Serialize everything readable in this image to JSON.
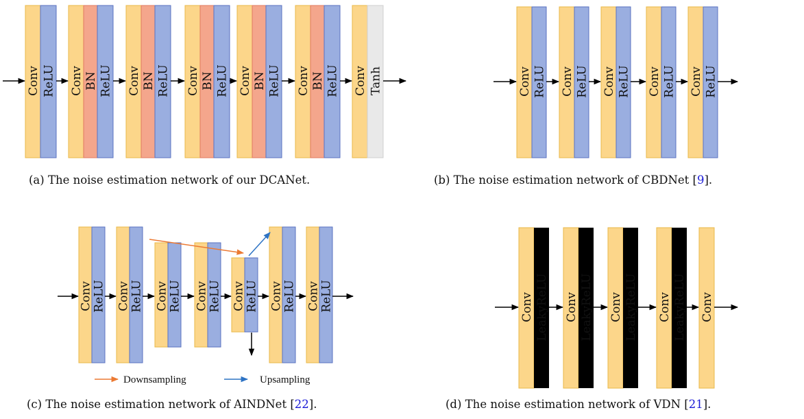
{
  "colors": {
    "conv": "#fcd68a",
    "relu": "#9aaee0",
    "bn": "#f4a68c",
    "tanh": "#e9e9e9",
    "downsampling_arrow": "#ec7a33",
    "upsampling_arrow": "#2d73c4"
  },
  "labels": {
    "conv": "Conv",
    "relu": "ReLU",
    "bn": "BN",
    "tanh": "Tanh",
    "leaky": "LeakyReLU"
  },
  "legend": {
    "downsampling": "Downsampling",
    "upsampling": "Upsampling"
  },
  "captions": {
    "a": {
      "text": "(a) The noise estimation network of our DCANet.",
      "ref": "",
      "end": ""
    },
    "b": {
      "text": "(b) The noise estimation network of CBDNet [",
      "ref": "9",
      "end": "]."
    },
    "c": {
      "text": "(c) The noise estimation network of AINDNet [",
      "ref": "22",
      "end": "]."
    },
    "d": {
      "text": "(d) The noise estimation network of VDN [",
      "ref": "21",
      "end": "]."
    }
  }
}
